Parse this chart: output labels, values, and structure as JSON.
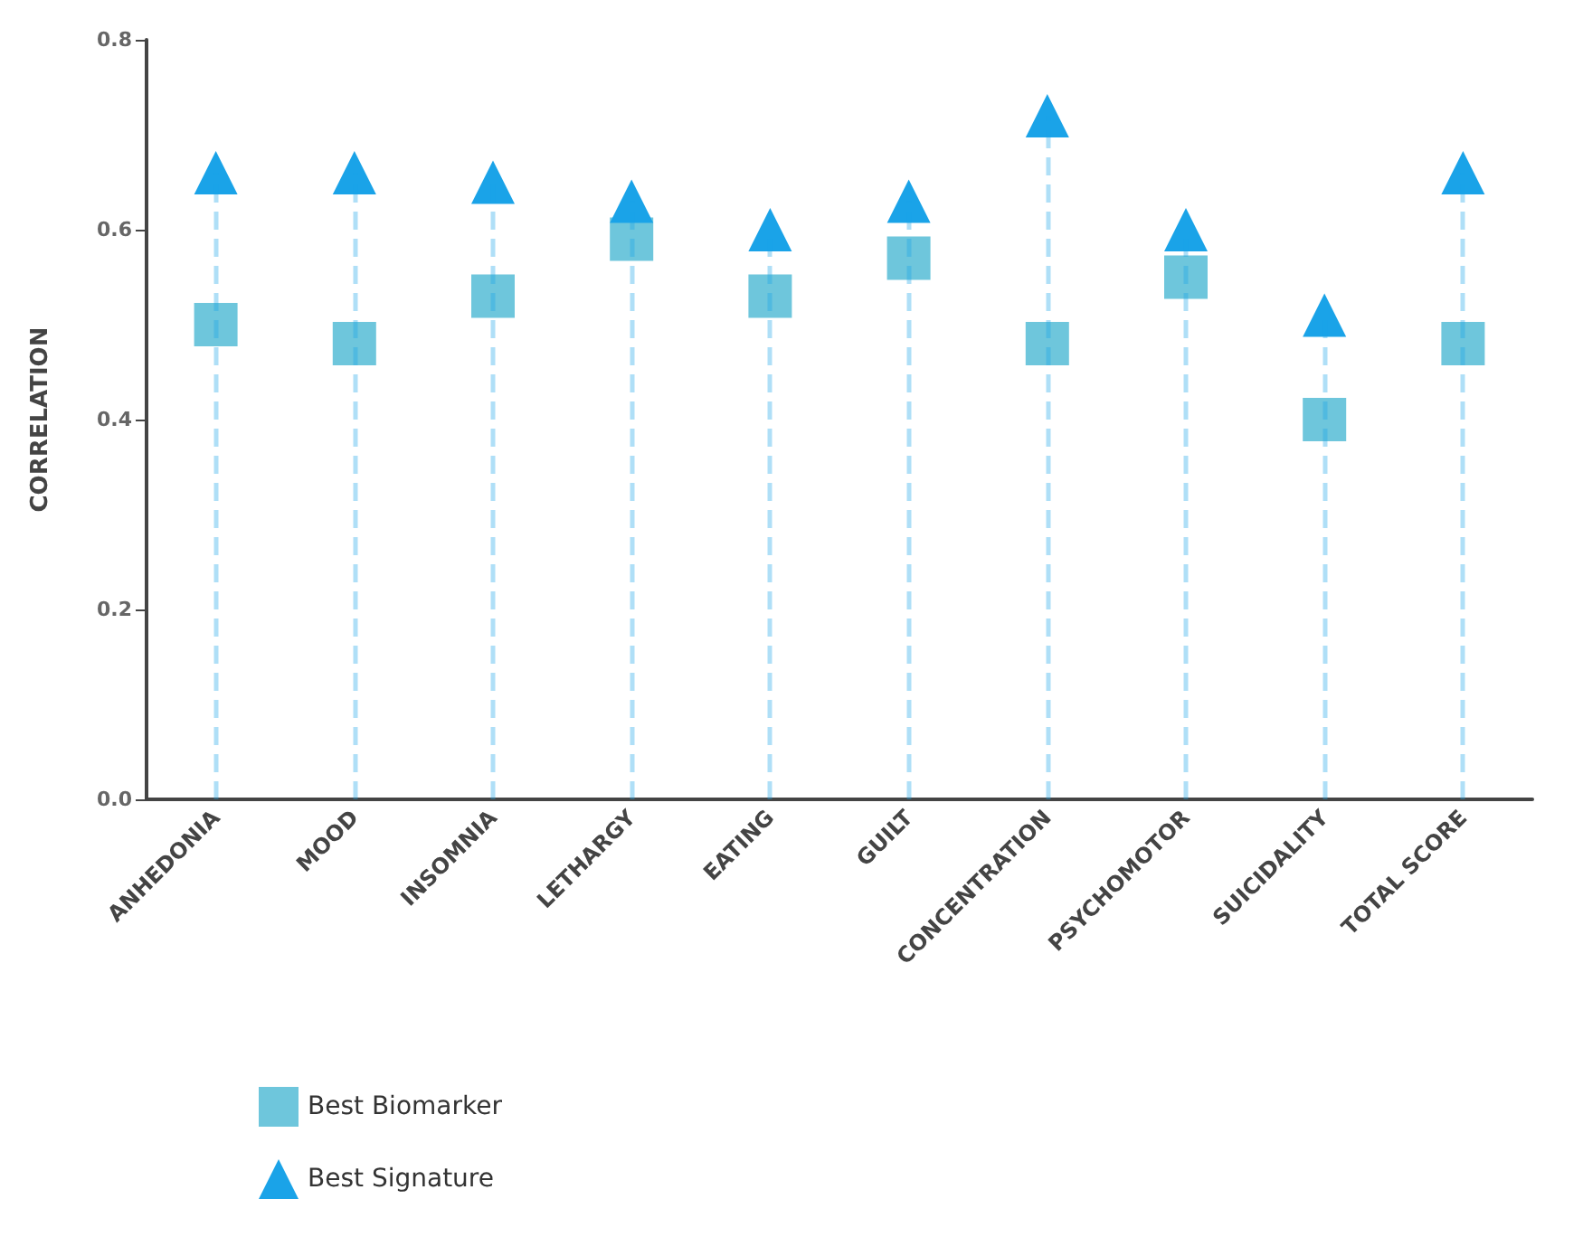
{
  "chart_data": {
    "type": "scatter",
    "ylabel": "CORRELATION",
    "categories": [
      "ANHEDONIA",
      "MOOD",
      "INSOMNIA",
      "LETHARGY",
      "EATING",
      "GUILT",
      "CONCENTRATION",
      "PSYCHOMOTOR",
      "SUICIDALITY",
      "TOTAL SCORE"
    ],
    "series": [
      {
        "name": "Best Biomarker",
        "marker": "square",
        "color": "#6ec6dc",
        "values": [
          0.5,
          0.48,
          0.53,
          0.59,
          0.53,
          0.57,
          0.48,
          0.55,
          0.4,
          0.48
        ]
      },
      {
        "name": "Best Signature",
        "type": "lollipop",
        "marker": "triangle",
        "line_style": "dashed",
        "color": "#1aa3e8",
        "values": [
          0.66,
          0.66,
          0.65,
          0.63,
          0.6,
          0.63,
          0.72,
          0.6,
          0.51,
          0.66
        ]
      }
    ],
    "ylim": [
      0,
      0.8
    ],
    "yticks": [
      {
        "value": 0,
        "label": "0.0"
      },
      {
        "value": 0.2,
        "label": "0.2"
      },
      {
        "value": 0.4,
        "label": "0.4"
      },
      {
        "value": 0.6,
        "label": "0.6"
      },
      {
        "value": 0.8,
        "label": "0.8"
      }
    ],
    "grid": false,
    "legend": "bottom left"
  }
}
